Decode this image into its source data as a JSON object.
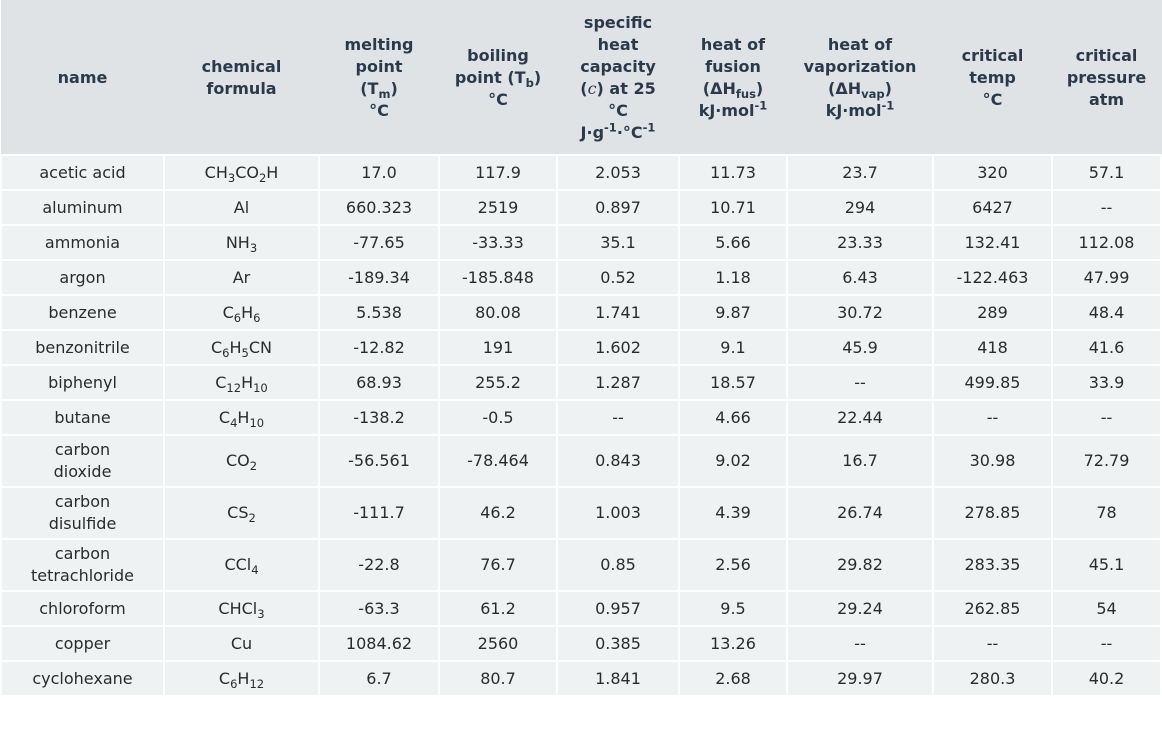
{
  "table": {
    "headers": {
      "name": "name",
      "formula_1": "chemical",
      "formula_2": "formula",
      "mp_1": "melting",
      "mp_2": "point",
      "mp_3a": "(T",
      "mp_3sub": "m",
      "mp_3b": ")",
      "mp_unit": "°C",
      "bp_1": "boiling",
      "bp_2a": "point (T",
      "bp_2sub": "b",
      "bp_2b": ")",
      "bp_unit": "°C",
      "shc_1": "specific",
      "shc_2": "heat",
      "shc_3": "capacity",
      "shc_4a": "(",
      "shc_4sym": "c",
      "shc_4b": ") at 25",
      "shc_5": "°C",
      "shc_6a": "J·g",
      "shc_6sup1": "-1",
      "shc_6b": "·°C",
      "shc_6sup2": "-1",
      "hf_1": "heat of",
      "hf_2": "fusion",
      "hf_3a": "(ΔH",
      "hf_3sub": "fus",
      "hf_3b": ")",
      "hf_4a": "kJ·mol",
      "hf_4sup": "-1",
      "hv_1": "heat of",
      "hv_2": "vaporization",
      "hv_3a": "(ΔH",
      "hv_3sub": "vap",
      "hv_3b": ")",
      "hv_4a": "kJ·mol",
      "hv_4sup": "-1",
      "ct_1": "critical",
      "ct_2": "temp",
      "ct_3": "°C",
      "cp_1": "critical",
      "cp_2": "pressure",
      "cp_3": "atm"
    },
    "rows": [
      {
        "name": [
          "acetic acid"
        ],
        "formula": [
          [
            "CH",
            "n"
          ],
          [
            "3",
            "sub"
          ],
          [
            "CO",
            "n"
          ],
          [
            "2",
            "sub"
          ],
          [
            "H",
            "n"
          ]
        ],
        "mp": "17.0",
        "bp": "117.9",
        "shc": "2.053",
        "hf": "11.73",
        "hv": "23.7",
        "ct": "320",
        "cp": "57.1"
      },
      {
        "name": [
          "aluminum"
        ],
        "formula": [
          [
            "Al",
            "n"
          ]
        ],
        "mp": "660.323",
        "bp": "2519",
        "shc": "0.897",
        "hf": "10.71",
        "hv": "294",
        "ct": "6427",
        "cp": "--"
      },
      {
        "name": [
          "ammonia"
        ],
        "formula": [
          [
            "NH",
            "n"
          ],
          [
            "3",
            "sub"
          ]
        ],
        "mp": "-77.65",
        "bp": "-33.33",
        "shc": "35.1",
        "hf": "5.66",
        "hv": "23.33",
        "ct": "132.41",
        "cp": "112.08"
      },
      {
        "name": [
          "argon"
        ],
        "formula": [
          [
            "Ar",
            "n"
          ]
        ],
        "mp": "-189.34",
        "bp": "-185.848",
        "shc": "0.52",
        "hf": "1.18",
        "hv": "6.43",
        "ct": "-122.463",
        "cp": "47.99"
      },
      {
        "name": [
          "benzene"
        ],
        "formula": [
          [
            "C",
            "n"
          ],
          [
            "6",
            "sub"
          ],
          [
            "H",
            "n"
          ],
          [
            "6",
            "sub"
          ]
        ],
        "mp": "5.538",
        "bp": "80.08",
        "shc": "1.741",
        "hf": "9.87",
        "hv": "30.72",
        "ct": "289",
        "cp": "48.4"
      },
      {
        "name": [
          "benzonitrile"
        ],
        "formula": [
          [
            "C",
            "n"
          ],
          [
            "6",
            "sub"
          ],
          [
            "H",
            "n"
          ],
          [
            "5",
            "sub"
          ],
          [
            "CN",
            "n"
          ]
        ],
        "mp": "-12.82",
        "bp": "191",
        "shc": "1.602",
        "hf": "9.1",
        "hv": "45.9",
        "ct": "418",
        "cp": "41.6"
      },
      {
        "name": [
          "biphenyl"
        ],
        "formula": [
          [
            "C",
            "n"
          ],
          [
            "12",
            "sub"
          ],
          [
            "H",
            "n"
          ],
          [
            "10",
            "sub"
          ]
        ],
        "mp": "68.93",
        "bp": "255.2",
        "shc": "1.287",
        "hf": "18.57",
        "hv": "--",
        "ct": "499.85",
        "cp": "33.9"
      },
      {
        "name": [
          "butane"
        ],
        "formula": [
          [
            "C",
            "n"
          ],
          [
            "4",
            "sub"
          ],
          [
            "H",
            "n"
          ],
          [
            "10",
            "sub"
          ]
        ],
        "mp": "-138.2",
        "bp": "-0.5",
        "shc": "--",
        "hf": "4.66",
        "hv": "22.44",
        "ct": "--",
        "cp": "--"
      },
      {
        "name": [
          "carbon",
          "dioxide"
        ],
        "formula": [
          [
            "CO",
            "n"
          ],
          [
            "2",
            "sub"
          ]
        ],
        "mp": "-56.561",
        "bp": "-78.464",
        "shc": "0.843",
        "hf": "9.02",
        "hv": "16.7",
        "ct": "30.98",
        "cp": "72.79"
      },
      {
        "name": [
          "carbon",
          "disulfide"
        ],
        "formula": [
          [
            "CS",
            "n"
          ],
          [
            "2",
            "sub"
          ]
        ],
        "mp": "-111.7",
        "bp": "46.2",
        "shc": "1.003",
        "hf": "4.39",
        "hv": "26.74",
        "ct": "278.85",
        "cp": "78"
      },
      {
        "name": [
          "carbon",
          "tetrachloride"
        ],
        "formula": [
          [
            "CCl",
            "n"
          ],
          [
            "4",
            "sub"
          ]
        ],
        "mp": "-22.8",
        "bp": "76.7",
        "shc": "0.85",
        "hf": "2.56",
        "hv": "29.82",
        "ct": "283.35",
        "cp": "45.1"
      },
      {
        "name": [
          "chloroform"
        ],
        "formula": [
          [
            "CHCl",
            "n"
          ],
          [
            "3",
            "sub"
          ]
        ],
        "mp": "-63.3",
        "bp": "61.2",
        "shc": "0.957",
        "hf": "9.5",
        "hv": "29.24",
        "ct": "262.85",
        "cp": "54"
      },
      {
        "name": [
          "copper"
        ],
        "formula": [
          [
            "Cu",
            "n"
          ]
        ],
        "mp": "1084.62",
        "bp": "2560",
        "shc": "0.385",
        "hf": "13.26",
        "hv": "--",
        "ct": "--",
        "cp": "--"
      },
      {
        "name": [
          "cyclohexane"
        ],
        "formula": [
          [
            "C",
            "n"
          ],
          [
            "6",
            "sub"
          ],
          [
            "H",
            "n"
          ],
          [
            "12",
            "sub"
          ]
        ],
        "mp": "6.7",
        "bp": "80.7",
        "shc": "1.841",
        "hf": "2.68",
        "hv": "29.97",
        "ct": "280.3",
        "cp": "40.2"
      }
    ]
  }
}
